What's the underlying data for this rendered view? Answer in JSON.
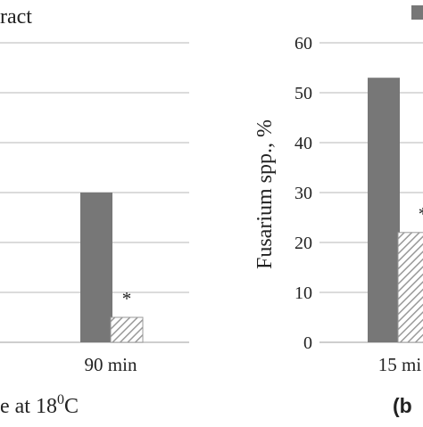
{
  "legend": {
    "partial_text": "ract",
    "swatch_color": "#777777"
  },
  "caption_left": "e at  18",
  "caption_left_sup": "0",
  "caption_left_unit": "C",
  "caption_right": "(b",
  "colors": {
    "solid": "#777777",
    "hatch": "#9a9a9a",
    "grid": "#cfcfcf"
  },
  "chart_data": [
    {
      "type": "bar",
      "categories": [
        "90 min"
      ],
      "series": [
        {
          "values": [
            30
          ],
          "pattern": "solid"
        },
        {
          "values": [
            5
          ],
          "pattern": "hatched"
        }
      ],
      "annotations": [
        {
          "category": "90 min",
          "series": 1,
          "text": "*"
        }
      ],
      "ylim": [
        0,
        60
      ],
      "grid": true
    },
    {
      "type": "bar",
      "categories": [
        "15 mi"
      ],
      "ylabel": "Fusarium spp., %",
      "yticks": [
        "0",
        "10",
        "20",
        "30",
        "40",
        "50",
        "60"
      ],
      "series": [
        {
          "values": [
            53
          ],
          "pattern": "solid"
        },
        {
          "values": [
            22
          ],
          "pattern": "hatched"
        }
      ],
      "annotations": [
        {
          "category": "15 mi",
          "series": 1,
          "text": "*"
        }
      ],
      "ylim": [
        0,
        60
      ],
      "grid": true
    }
  ]
}
